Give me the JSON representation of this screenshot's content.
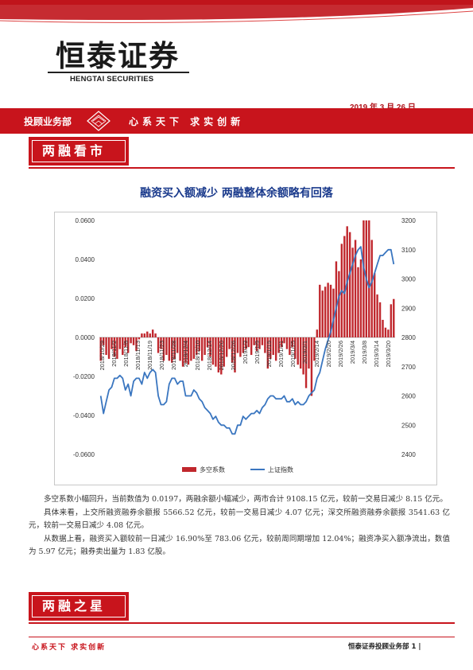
{
  "brand": {
    "name_cn": "恒泰证券",
    "name_en": "HENGTAI SECURITIES"
  },
  "report_date": "2019 年 3 月 26 日",
  "header": {
    "department": "投顾业务部",
    "motto": "心系天下  求实创新"
  },
  "sections": [
    {
      "title": "两融看市"
    },
    {
      "title": "两融之星"
    }
  ],
  "headline": "融资买入额减少  两融整体余额略有回落",
  "chart_data": {
    "type": "bar",
    "y_left": {
      "ticks": [
        "0.0600",
        "0.0400",
        "0.0200",
        "0.0000",
        "-0.0200",
        "-0.0400",
        "-0.0600"
      ],
      "range": [
        -0.06,
        0.06
      ]
    },
    "y_right": {
      "ticks": [
        "3200",
        "3100",
        "3000",
        "2900",
        "2800",
        "2700",
        "2600",
        "2500",
        "2400"
      ],
      "range": [
        2400,
        3200
      ]
    },
    "x_tick_labels": [
      "2018/10/29",
      "2018/11/2",
      "2018/11/8",
      "2018/11/13",
      "2018/11/19",
      "2018/11/23",
      "2018/11/28",
      "2018/12/4",
      "2018/12/10",
      "2018/12/14",
      "2018/12/20",
      "2018/12/26",
      "2019/1/3",
      "2019/1/9",
      "2019/1/15",
      "2019/1/21",
      "2019/1/25",
      "2019/2/1",
      "2019/2/14",
      "2019/2/20",
      "2019/2/26",
      "2019/3/4",
      "2019/3/8",
      "2019/3/14",
      "2019/3/20"
    ],
    "series": [
      {
        "name": "多空系数",
        "kind": "bar",
        "color": "#c0272d",
        "values": [
          -0.012,
          -0.004,
          -0.009,
          -0.011,
          -0.006,
          -0.01,
          -0.011,
          -0.006,
          -0.009,
          -0.005,
          -0.008,
          -0.003,
          -0.004,
          -0.007,
          -0.001,
          0.002,
          0.002,
          0.003,
          0.002,
          0.004,
          0.002,
          -0.008,
          -0.006,
          -0.012,
          -0.009,
          -0.012,
          -0.013,
          -0.011,
          -0.008,
          -0.012,
          -0.015,
          -0.013,
          -0.014,
          -0.012,
          -0.011,
          -0.009,
          -0.007,
          -0.012,
          -0.009,
          -0.005,
          -0.01,
          -0.014,
          -0.015,
          -0.018,
          -0.019,
          -0.015,
          -0.01,
          -0.006,
          -0.013,
          -0.018,
          -0.008,
          -0.01,
          -0.008,
          -0.006,
          -0.005,
          -0.009,
          -0.004,
          -0.007,
          -0.006,
          -0.004,
          -0.008,
          -0.016,
          -0.011,
          -0.009,
          -0.012,
          -0.008,
          -0.005,
          -0.003,
          -0.006,
          -0.009,
          -0.005,
          -0.011,
          -0.014,
          -0.016,
          -0.019,
          -0.026,
          -0.016,
          -0.03,
          -0.012,
          0.004,
          0.027,
          0.024,
          0.026,
          0.028,
          0.027,
          0.025,
          0.039,
          0.034,
          0.048,
          0.052,
          0.057,
          0.054,
          0.046,
          0.05,
          0.036,
          0.04,
          0.06,
          0.06,
          0.06,
          0.05,
          0.033,
          0.022,
          0.018,
          0.009,
          0.005,
          0.004,
          0.017,
          0.0197
        ]
      },
      {
        "name": "上证指数",
        "kind": "line",
        "axis": "right",
        "color": "#3a76c0",
        "values": [
          2600,
          2540,
          2580,
          2620,
          2630,
          2660,
          2660,
          2670,
          2660,
          2620,
          2640,
          2600,
          2650,
          2660,
          2660,
          2640,
          2680,
          2660,
          2680,
          2690,
          2680,
          2600,
          2570,
          2570,
          2580,
          2640,
          2660,
          2660,
          2640,
          2650,
          2650,
          2600,
          2600,
          2600,
          2620,
          2610,
          2590,
          2580,
          2560,
          2550,
          2540,
          2520,
          2530,
          2510,
          2500,
          2500,
          2490,
          2490,
          2470,
          2470,
          2500,
          2500,
          2530,
          2520,
          2530,
          2540,
          2540,
          2550,
          2540,
          2560,
          2570,
          2590,
          2600,
          2600,
          2590,
          2590,
          2590,
          2600,
          2580,
          2580,
          2590,
          2570,
          2580,
          2570,
          2570,
          2580,
          2600,
          2610,
          2620,
          2660,
          2680,
          2720,
          2760,
          2790,
          2820,
          2860,
          2900,
          2940,
          2960,
          2950,
          2990,
          3020,
          3050,
          3080,
          3100,
          3110,
          3040,
          3000,
          2970,
          2990,
          3020,
          3050,
          3080,
          3080,
          3090,
          3100,
          3100,
          3050
        ]
      }
    ]
  },
  "body": {
    "paragraphs": [
      "多空系数小幅回升，当前数值为 0.0197，两融余额小幅减少，两市合计 9108.15 亿元，较前一交易日减少 8.15 亿元。",
      "具体来看，上交所融资融券余额报 5566.52 亿元，较前一交易日减少 4.07 亿元；深交所融资融券余额报 3541.63 亿元，较前一交易日减少 4.08 亿元。",
      "从数据上看，融资买入额较前一日减少 16.90%至 783.06 亿元，较前周同期增加 12.04%；融资净买入额净流出，数值为 5.97 亿元；融券卖出量为 1.83 亿股。"
    ]
  },
  "footer": {
    "motto": "心系天下    求实创新",
    "page_label": "恒泰证券投顾业务部 1 |"
  },
  "colors": {
    "brand_red": "#c8141c",
    "headline_blue": "#1a3a8c"
  }
}
